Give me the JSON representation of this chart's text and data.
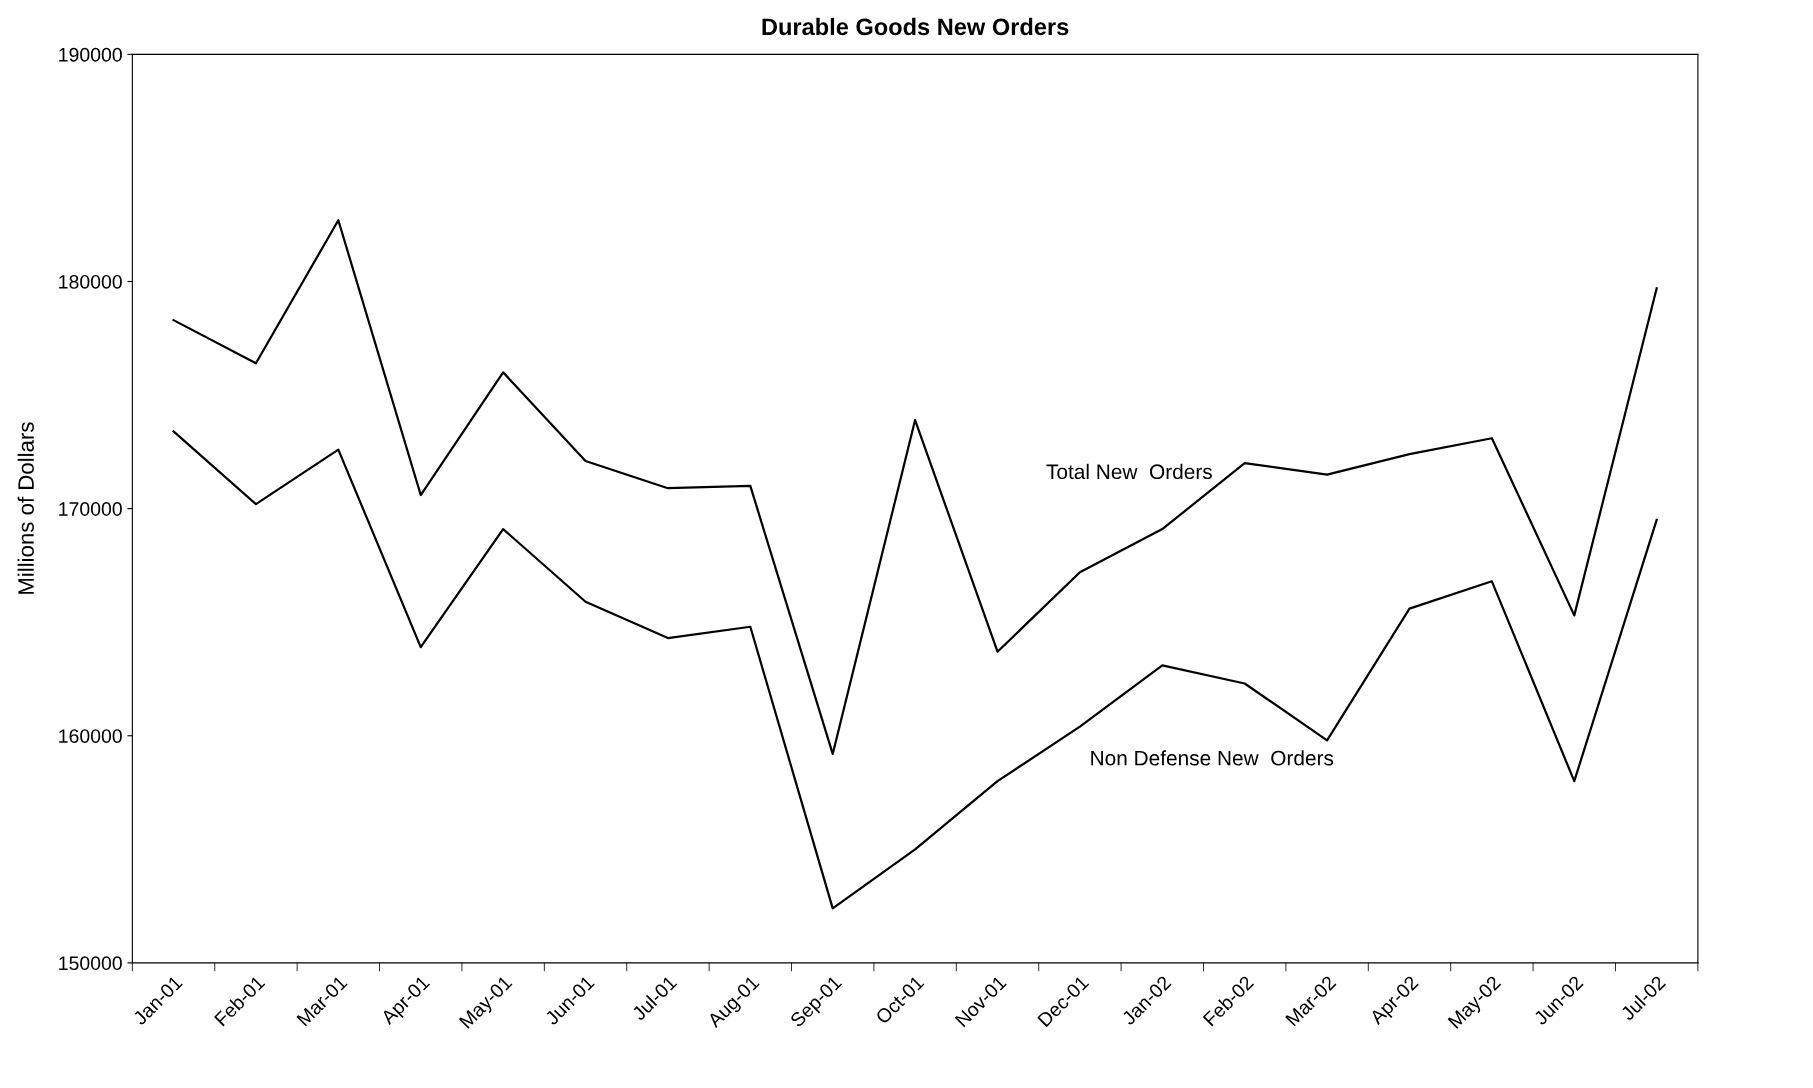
{
  "chart_data": {
    "type": "line",
    "title": "Durable Goods New Orders",
    "ylabel": "Millions of Dollars",
    "categories": [
      "Jan-01",
      "Feb-01",
      "Mar-01",
      "Apr-01",
      "May-01",
      "Jun-01",
      "Jul-01",
      "Aug-01",
      "Sep-01",
      "Oct-01",
      "Nov-01",
      "Dec-01",
      "Jan-02",
      "Feb-02",
      "Mar-02",
      "Apr-02",
      "May-02",
      "Jun-02",
      "Jul-02"
    ],
    "series": [
      {
        "name": "Total New  Orders",
        "color": "#000000",
        "values": [
          178300,
          176400,
          182700,
          170600,
          176000,
          172100,
          170900,
          171000,
          159200,
          173900,
          163700,
          167200,
          169100,
          172000,
          171500,
          172400,
          173100,
          165300,
          179700
        ]
      },
      {
        "name": "Non Defense New  Orders",
        "color": "#000000",
        "values": [
          173400,
          170200,
          172600,
          163900,
          169100,
          165900,
          164300,
          164800,
          152400,
          155000,
          158000,
          160400,
          163100,
          162300,
          159800,
          165600,
          166800,
          158000,
          169500
        ]
      }
    ],
    "ylim": [
      150000,
      190000
    ],
    "yticks": [
      150000,
      160000,
      170000,
      180000,
      190000
    ],
    "grid": false,
    "legend": false,
    "marker": "none",
    "line_style": "solid"
  }
}
